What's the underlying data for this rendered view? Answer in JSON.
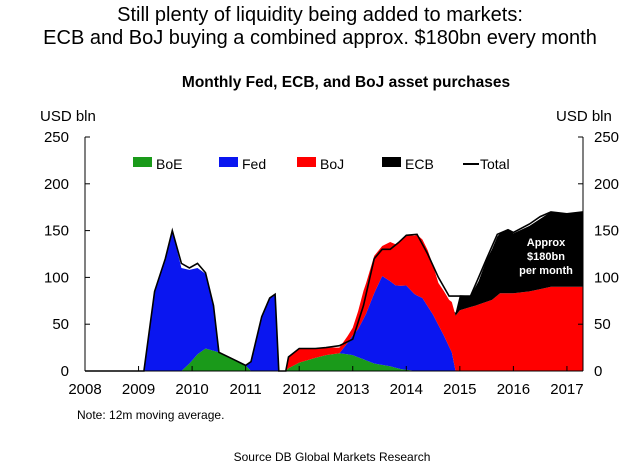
{
  "headline": {
    "line1": "Still plenty of liquidity being added to markets:",
    "line2": "ECB and BoJ buying a combined approx. $180bn every month"
  },
  "note": "Note: 12m moving average.",
  "source": "Source  DB Global Markets Research",
  "annotation": [
    "Approx",
    "$180bn",
    "per month"
  ],
  "chart_data": {
    "type": "area",
    "stacked": true,
    "title": "Monthly Fed, ECB, and BoJ asset purchases",
    "ylabel_left": "USD bln",
    "ylabel_right": "USD bln",
    "xlim": [
      2008,
      2017.3
    ],
    "ylim": [
      0,
      250
    ],
    "x_ticks": [
      2008,
      2009,
      2010,
      2011,
      2012,
      2013,
      2014,
      2015,
      2016,
      2017
    ],
    "y_ticks": [
      0,
      50,
      100,
      150,
      200,
      250
    ],
    "legend": [
      {
        "label": "BoE",
        "color": "#1a9a1a",
        "kind": "box"
      },
      {
        "label": "Fed",
        "color": "#0a16f0",
        "kind": "box"
      },
      {
        "label": "BoJ",
        "color": "#ff0000",
        "kind": "box"
      },
      {
        "label": "ECB",
        "color": "#000000",
        "kind": "box"
      },
      {
        "label": "Total",
        "color": "#000000",
        "kind": "line"
      }
    ],
    "legend_position": "top",
    "grid": false,
    "series": [
      {
        "name": "BoE",
        "color": "#1a9a1a",
        "x": [
          2009.0,
          2009.8,
          2009.95,
          2010.1,
          2010.25,
          2010.5,
          2010.75,
          2011.0,
          2011.1,
          2011.75,
          2011.8,
          2012.0,
          2012.3,
          2012.5,
          2012.75,
          2013.0,
          2013.4,
          2013.7,
          2013.9,
          2014.2,
          2014.5,
          2015.0,
          2017.3
        ],
        "values": [
          0,
          0,
          8,
          18,
          24,
          20,
          13,
          6,
          0,
          0,
          3,
          9,
          14,
          17,
          19,
          17,
          8,
          5,
          2,
          0,
          0,
          0,
          0
        ]
      },
      {
        "name": "Fed",
        "color": "#0a16f0",
        "x": [
          2009.0,
          2009.1,
          2009.3,
          2009.5,
          2009.63,
          2009.8,
          2009.95,
          2010.1,
          2010.25,
          2010.4,
          2010.5,
          2010.75,
          2011.0,
          2011.1,
          2011.3,
          2011.45,
          2011.55,
          2011.62,
          2011.75,
          2012.0,
          2012.5,
          2012.75,
          2012.9,
          2013.1,
          2013.25,
          2013.4,
          2013.55,
          2013.8,
          2014.0,
          2014.15,
          2014.3,
          2014.5,
          2014.7,
          2014.85,
          2014.92,
          2017.3
        ],
        "values": [
          0,
          0,
          85,
          120,
          150,
          110,
          100,
          92,
          80,
          50,
          0,
          0,
          0,
          10,
          58,
          78,
          82,
          0,
          0,
          0,
          0,
          0,
          12,
          30,
          50,
          75,
          95,
          88,
          90,
          82,
          78,
          60,
          38,
          20,
          0,
          0
        ]
      },
      {
        "name": "BoJ",
        "color": "#ff0000",
        "x": [
          2011.75,
          2011.8,
          2012.0,
          2012.3,
          2012.5,
          2012.75,
          2013.0,
          2013.2,
          2013.4,
          2013.55,
          2013.7,
          2013.85,
          2014.0,
          2014.2,
          2014.4,
          2014.6,
          2014.8,
          2015.0,
          2015.3,
          2015.6,
          2015.75,
          2016.0,
          2016.3,
          2016.7,
          2017.0,
          2017.3
        ],
        "values": [
          0,
          12,
          15,
          10,
          8,
          6,
          8,
          30,
          40,
          32,
          42,
          45,
          54,
          65,
          60,
          45,
          50,
          65,
          70,
          76,
          83,
          83,
          85,
          90,
          90,
          90
        ]
      },
      {
        "name": "ECB",
        "color": "#000000",
        "x": [
          2014.9,
          2015.0,
          2015.2,
          2015.35,
          2015.5,
          2015.7,
          2015.9,
          2016.0,
          2016.3,
          2016.5,
          2016.7,
          2017.0,
          2017.3
        ],
        "values": [
          0,
          16,
          12,
          25,
          45,
          63,
          68,
          64,
          70,
          75,
          80,
          78,
          80
        ]
      }
    ],
    "total": {
      "name": "Total",
      "x": [
        2008.0,
        2009.0,
        2009.1,
        2009.3,
        2009.5,
        2009.63,
        2009.8,
        2009.95,
        2010.1,
        2010.25,
        2010.4,
        2010.5,
        2010.75,
        2011.0,
        2011.1,
        2011.3,
        2011.45,
        2011.55,
        2011.62,
        2011.75,
        2011.8,
        2012.0,
        2012.3,
        2012.5,
        2012.75,
        2013.0,
        2013.2,
        2013.4,
        2013.55,
        2013.7,
        2013.85,
        2014.0,
        2014.2,
        2014.4,
        2014.6,
        2014.8,
        2015.0,
        2015.2,
        2015.35,
        2015.5,
        2015.7,
        2015.9,
        2016.0,
        2016.3,
        2016.5,
        2016.7,
        2017.0,
        2017.3
      ],
      "values": [
        0,
        0,
        0,
        85,
        120,
        150,
        115,
        110,
        115,
        105,
        70,
        20,
        13,
        6,
        10,
        58,
        78,
        82,
        0,
        0,
        15,
        24,
        24,
        25,
        27,
        34,
        70,
        120,
        130,
        130,
        137,
        145,
        146,
        125,
        100,
        80,
        80,
        80,
        100,
        120,
        146,
        151,
        148,
        157,
        165,
        170,
        168,
        170
      ]
    },
    "annotation_value": 180
  }
}
